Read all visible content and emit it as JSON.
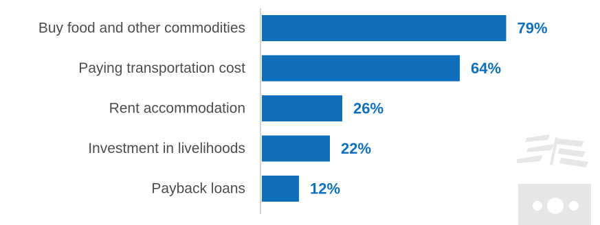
{
  "chart_data": {
    "type": "bar",
    "orientation": "horizontal",
    "categories": [
      "Buy food and other commodities",
      "Paying transportation cost",
      "Rent accommodation",
      "Investment in livelihoods",
      "Payback loans"
    ],
    "values": [
      79,
      64,
      26,
      22,
      12
    ],
    "value_labels": [
      "79%",
      "64%",
      "26%",
      "22%",
      "12%"
    ],
    "title": "",
    "xlabel": "",
    "ylabel": "",
    "xlim": [
      0,
      100
    ],
    "grid": false,
    "legend": "none"
  },
  "colors": {
    "bar": "#0f6fba",
    "value_label": "#0f6fba",
    "category_label": "#4d4d4d",
    "axis_line": "#c8c8c8",
    "watermark": "#e6e6e6"
  },
  "watermark": {
    "icon": "money-and-wheat-icon"
  }
}
